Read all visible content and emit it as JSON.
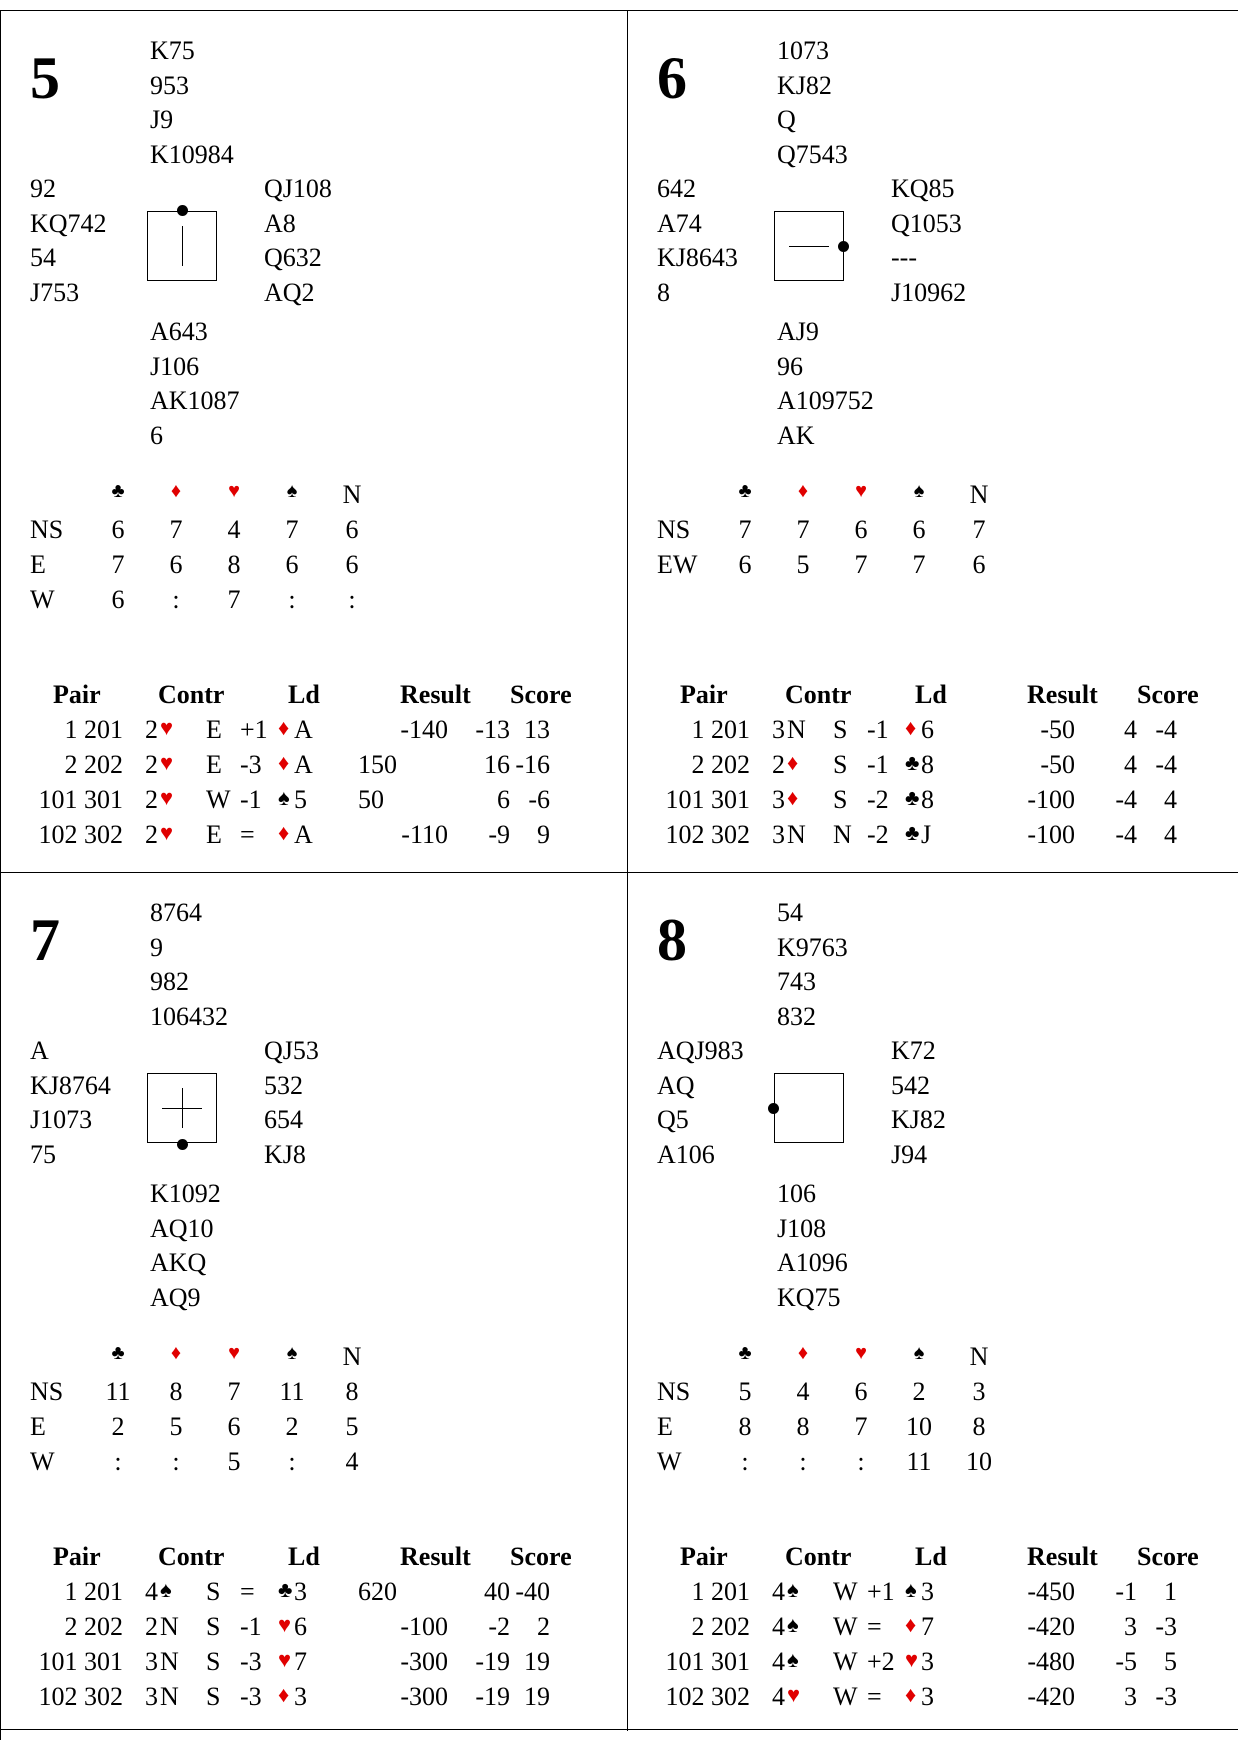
{
  "dd_headers": [
    "♣",
    "♦",
    "♥",
    "♠",
    "N"
  ],
  "result_headers": {
    "pair": "Pair",
    "contr": "Contr",
    "ld": "Ld",
    "result": "Result",
    "score": "Score"
  },
  "boards": [
    {
      "number": "5",
      "north": [
        "K75",
        "953",
        "J9",
        "K10984"
      ],
      "west": [
        "92",
        "KQ742",
        "54",
        "J753"
      ],
      "east": [
        "QJ108",
        "A8",
        "Q632",
        "AQ2"
      ],
      "south": [
        "A643",
        "J106",
        "AK1087",
        "6"
      ],
      "dealer_mark": "vertical",
      "dd_rows": [
        {
          "label": "NS",
          "values": [
            "6",
            "7",
            "4",
            "7",
            "6"
          ]
        },
        {
          "label": "E",
          "values": [
            "7",
            "6",
            "8",
            "6",
            "6"
          ]
        },
        {
          "label": "W",
          "values": [
            "6",
            ":",
            "7",
            ":",
            ":"
          ]
        }
      ],
      "results": [
        {
          "pair": "1 201",
          "level": "2",
          "suit": "♥",
          "suit_color": "red",
          "decl": "E",
          "tricks": "+1",
          "lead_suit": "♦",
          "lead_color": "red",
          "lead_card": "A",
          "result": "-140",
          "result_align": "right",
          "score1": "-13",
          "score2": "13"
        },
        {
          "pair": "2 202",
          "level": "2",
          "suit": "♥",
          "suit_color": "red",
          "decl": "E",
          "tricks": "-3",
          "lead_suit": "♦",
          "lead_color": "red",
          "lead_card": "A",
          "result": "150",
          "result_align": "left",
          "score1": "16",
          "score2": "-16"
        },
        {
          "pair": "101 301",
          "level": "2",
          "suit": "♥",
          "suit_color": "red",
          "decl": "W",
          "tricks": "-1",
          "lead_suit": "♠",
          "lead_color": "black",
          "lead_card": "5",
          "result": "50",
          "result_align": "left",
          "score1": "6",
          "score2": "-6"
        },
        {
          "pair": "102 302",
          "level": "2",
          "suit": "♥",
          "suit_color": "red",
          "decl": "E",
          "tricks": "=",
          "lead_suit": "♦",
          "lead_color": "red",
          "lead_card": "A",
          "result": "-110",
          "result_align": "right",
          "score1": "-9",
          "score2": "9"
        }
      ]
    },
    {
      "number": "6",
      "north": [
        "1073",
        "KJ82",
        "Q",
        "Q7543"
      ],
      "west": [
        "642",
        "A74",
        "KJ8643",
        "8"
      ],
      "east": [
        "KQ85",
        "Q1053",
        "---",
        "J10962"
      ],
      "south": [
        "AJ9",
        "96",
        "A109752",
        "AK"
      ],
      "dealer_mark": "horizontal",
      "dd_rows": [
        {
          "label": "NS",
          "values": [
            "7",
            "7",
            "6",
            "6",
            "7"
          ]
        },
        {
          "label": "EW",
          "values": [
            "6",
            "5",
            "7",
            "7",
            "6"
          ]
        }
      ],
      "results": [
        {
          "pair": "1 201",
          "level": "3",
          "suit": "N",
          "suit_color": "black",
          "decl": "S",
          "tricks": "-1",
          "lead_suit": "♦",
          "lead_color": "red",
          "lead_card": "6",
          "result": "-50",
          "result_align": "right",
          "score1": "4",
          "score2": "-4"
        },
        {
          "pair": "2 202",
          "level": "2",
          "suit": "♦",
          "suit_color": "red",
          "decl": "S",
          "tricks": "-1",
          "lead_suit": "♣",
          "lead_color": "black",
          "lead_card": "8",
          "result": "-50",
          "result_align": "right",
          "score1": "4",
          "score2": "-4"
        },
        {
          "pair": "101 301",
          "level": "3",
          "suit": "♦",
          "suit_color": "red",
          "decl": "S",
          "tricks": "-2",
          "lead_suit": "♣",
          "lead_color": "black",
          "lead_card": "8",
          "result": "-100",
          "result_align": "right",
          "score1": "-4",
          "score2": "4"
        },
        {
          "pair": "102 302",
          "level": "3",
          "suit": "N",
          "suit_color": "black",
          "decl": "N",
          "tricks": "-2",
          "lead_suit": "♣",
          "lead_color": "black",
          "lead_card": "J",
          "result": "-100",
          "result_align": "right",
          "score1": "-4",
          "score2": "4"
        }
      ]
    },
    {
      "number": "7",
      "north": [
        "8764",
        "9",
        "982",
        "106432"
      ],
      "west": [
        "A",
        "KJ8764",
        "J1073",
        "75"
      ],
      "east": [
        "QJ53",
        "532",
        "654",
        "KJ8"
      ],
      "south": [
        "K1092",
        "AQ10",
        "AKQ",
        "AQ9"
      ],
      "dealer_mark": "cross",
      "dd_rows": [
        {
          "label": "NS",
          "values": [
            "11",
            "8",
            "7",
            "11",
            "8"
          ]
        },
        {
          "label": "E",
          "values": [
            "2",
            "5",
            "6",
            "2",
            "5"
          ]
        },
        {
          "label": "W",
          "values": [
            ":",
            ":",
            "5",
            ":",
            "4"
          ]
        }
      ],
      "results": [
        {
          "pair": "1 201",
          "level": "4",
          "suit": "♠",
          "suit_color": "black",
          "decl": "S",
          "tricks": "=",
          "lead_suit": "♣",
          "lead_color": "black",
          "lead_card": "3",
          "result": "620",
          "result_align": "left",
          "score1": "40",
          "score2": "-40"
        },
        {
          "pair": "2 202",
          "level": "2",
          "suit": "N",
          "suit_color": "black",
          "decl": "S",
          "tricks": "-1",
          "lead_suit": "♥",
          "lead_color": "red",
          "lead_card": "6",
          "result": "-100",
          "result_align": "right",
          "score1": "-2",
          "score2": "2"
        },
        {
          "pair": "101 301",
          "level": "3",
          "suit": "N",
          "suit_color": "black",
          "decl": "S",
          "tricks": "-3",
          "lead_suit": "♥",
          "lead_color": "red",
          "lead_card": "7",
          "result": "-300",
          "result_align": "right",
          "score1": "-19",
          "score2": "19"
        },
        {
          "pair": "102 302",
          "level": "3",
          "suit": "N",
          "suit_color": "black",
          "decl": "S",
          "tricks": "-3",
          "lead_suit": "♦",
          "lead_color": "red",
          "lead_card": "3",
          "result": "-300",
          "result_align": "right",
          "score1": "-19",
          "score2": "19"
        }
      ]
    },
    {
      "number": "8",
      "north": [
        "54",
        "K9763",
        "743",
        "832"
      ],
      "west": [
        "AQJ983",
        "AQ",
        "Q5",
        "A106"
      ],
      "east": [
        "K72",
        "542",
        "KJ82",
        "J94"
      ],
      "south": [
        "106",
        "J108",
        "A1096",
        "KQ75"
      ],
      "dealer_mark": "none",
      "dd_rows": [
        {
          "label": "NS",
          "values": [
            "5",
            "4",
            "6",
            "2",
            "3"
          ]
        },
        {
          "label": "E",
          "values": [
            "8",
            "8",
            "7",
            "10",
            "8"
          ]
        },
        {
          "label": "W",
          "values": [
            ":",
            ":",
            ":",
            "11",
            "10"
          ]
        }
      ],
      "results": [
        {
          "pair": "1 201",
          "level": "4",
          "suit": "♠",
          "suit_color": "black",
          "decl": "W",
          "tricks": "+1",
          "lead_suit": "♠",
          "lead_color": "black",
          "lead_card": "3",
          "result": "-450",
          "result_align": "right",
          "score1": "-1",
          "score2": "1"
        },
        {
          "pair": "2 202",
          "level": "4",
          "suit": "♠",
          "suit_color": "black",
          "decl": "W",
          "tricks": "=",
          "lead_suit": "♦",
          "lead_color": "red",
          "lead_card": "7",
          "result": "-420",
          "result_align": "right",
          "score1": "3",
          "score2": "-3"
        },
        {
          "pair": "101 301",
          "level": "4",
          "suit": "♠",
          "suit_color": "black",
          "decl": "W",
          "tricks": "+2",
          "lead_suit": "♥",
          "lead_color": "red",
          "lead_card": "3",
          "result": "-480",
          "result_align": "right",
          "score1": "-5",
          "score2": "5"
        },
        {
          "pair": "102 302",
          "level": "4",
          "suit": "♥",
          "suit_color": "red",
          "decl": "W",
          "tricks": "=",
          "lead_suit": "♦",
          "lead_color": "red",
          "lead_card": "3",
          "result": "-420",
          "result_align": "right",
          "score1": "3",
          "score2": "-3"
        }
      ]
    }
  ]
}
